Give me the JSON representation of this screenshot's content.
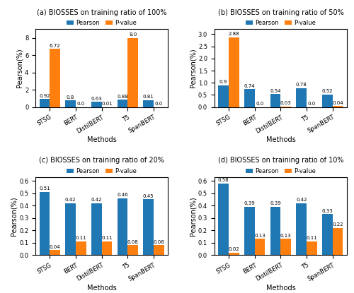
{
  "chart_data": [
    {
      "type": "bar",
      "title": "(a) BIOSSES on training ratio of 100%",
      "xlabel": "Methods",
      "ylabel": "Pearson(%)",
      "categories": [
        "STSG",
        "BERT",
        "DistilBERT",
        "T5",
        "SpanBERT"
      ],
      "series": [
        {
          "name": "Pearson",
          "values": [
            0.92,
            0.8,
            0.63,
            0.88,
            0.81
          ]
        },
        {
          "name": "P-value",
          "values": [
            6.72,
            0.0,
            0.01,
            8.0,
            0.0
          ]
        }
      ],
      "ylim": [
        0,
        9.0
      ],
      "yticks": [
        0,
        2,
        4,
        6,
        8
      ],
      "data_labels": true,
      "legend": "upper center"
    },
    {
      "type": "bar",
      "title": "(b) BIOSSES on training ratio of 50%",
      "xlabel": "Methods",
      "ylabel": "Pearson(%)",
      "categories": [
        "STSG",
        "BERT",
        "DistilBERT",
        "T5",
        "SpanBERT"
      ],
      "series": [
        {
          "name": "Pearson",
          "values": [
            0.9,
            0.74,
            0.54,
            0.78,
            0.52
          ]
        },
        {
          "name": "P-value",
          "values": [
            2.88,
            0.0,
            0.03,
            0.0,
            0.04
          ]
        }
      ],
      "ylim": [
        0,
        3.2
      ],
      "yticks": [
        0.0,
        0.5,
        1.0,
        1.5,
        2.0,
        2.5,
        3.0
      ],
      "data_labels": true,
      "legend": "upper center"
    },
    {
      "type": "bar",
      "title": "(c) BIOSSES on training ratio of 20%",
      "xlabel": "Methods",
      "ylabel": "Pearson(%)",
      "categories": [
        "STSG",
        "BERT",
        "DistilBERT",
        "T5",
        "SpanBERT"
      ],
      "series": [
        {
          "name": "Pearson",
          "values": [
            0.51,
            0.42,
            0.42,
            0.46,
            0.45
          ]
        },
        {
          "name": "P-value",
          "values": [
            0.04,
            0.11,
            0.11,
            0.08,
            0.08
          ]
        }
      ],
      "ylim": [
        0,
        0.63
      ],
      "yticks": [
        0.0,
        0.1,
        0.2,
        0.3,
        0.4,
        0.5,
        0.6
      ],
      "data_labels": true,
      "legend": "upper center"
    },
    {
      "type": "bar",
      "title": "(d) BIOSSES on training ratio of 10%",
      "xlabel": "Methods",
      "ylabel": "Pearson(%)",
      "categories": [
        "STSG",
        "BERT",
        "DistilBERT",
        "T5",
        "SpanBERT"
      ],
      "series": [
        {
          "name": "Pearson",
          "values": [
            0.58,
            0.39,
            0.39,
            0.42,
            0.33
          ]
        },
        {
          "name": "P-value",
          "values": [
            0.02,
            0.13,
            0.13,
            0.11,
            0.22
          ]
        }
      ],
      "ylim": [
        0,
        0.63
      ],
      "yticks": [
        0.0,
        0.1,
        0.2,
        0.3,
        0.4,
        0.5,
        0.6
      ],
      "data_labels": true,
      "legend": "upper center"
    }
  ]
}
